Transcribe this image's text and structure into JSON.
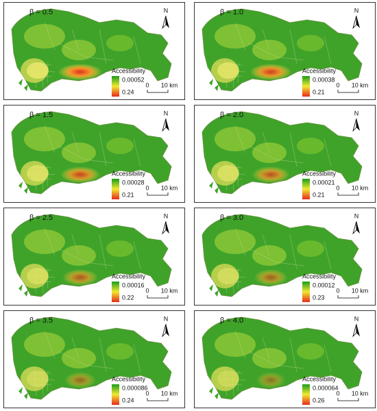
{
  "panels": [
    {
      "title": "β = 0.5",
      "legend": {
        "title": "Accessibility",
        "low": "0.00052",
        "high": "0.24"
      },
      "scale": {
        "start": "0",
        "end": "10 km"
      },
      "north": "N"
    },
    {
      "title": "β = 1.0",
      "legend": {
        "title": "Accessibility",
        "low": "0.00038",
        "high": "0.21"
      },
      "scale": {
        "start": "0",
        "end": "10 km"
      },
      "north": "N"
    },
    {
      "title": "β = 1.5",
      "legend": {
        "title": "Accessibility",
        "low": "0.00028",
        "high": "0.21"
      },
      "scale": {
        "start": "0",
        "end": "10 km"
      },
      "north": "N"
    },
    {
      "title": "β = 2.0",
      "legend": {
        "title": "Accessibility",
        "low": "0.00021",
        "high": "0.21"
      },
      "scale": {
        "start": "0",
        "end": "10 km"
      },
      "north": "N"
    },
    {
      "title": "β = 2.5",
      "legend": {
        "title": "Accessibility",
        "low": "0.00016",
        "high": "0.22"
      },
      "scale": {
        "start": "0",
        "end": "10 km"
      },
      "north": "N"
    },
    {
      "title": "β = 3.0",
      "legend": {
        "title": "Accessibility",
        "low": "0.00012",
        "high": "0.23"
      },
      "scale": {
        "start": "0",
        "end": "10 km"
      },
      "north": "N"
    },
    {
      "title": "β = 3.5",
      "legend": {
        "title": "Accessibility",
        "low": "0.000086",
        "high": "0.24"
      },
      "scale": {
        "start": "0",
        "end": "10 km"
      },
      "north": "N"
    },
    {
      "title": "β = 4.0",
      "legend": {
        "title": "Accessibility",
        "low": "0.000064",
        "high": "0.26"
      },
      "scale": {
        "start": "0",
        "end": "10 km"
      },
      "north": "N"
    }
  ]
}
